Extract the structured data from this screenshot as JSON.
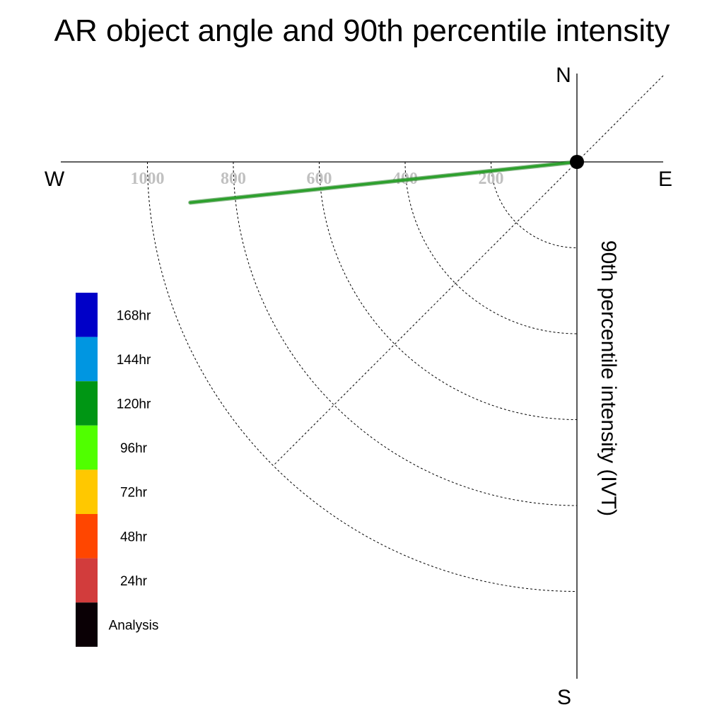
{
  "chart_data": {
    "type": "polar-quadrant",
    "title": "AR object angle and 90th percentile intensity",
    "ylabel": "90th percentile intensity (IVT)",
    "compass": {
      "north": "N",
      "south": "S",
      "east": "E",
      "west": "W"
    },
    "radial_ticks": [
      200,
      400,
      600,
      800,
      1000
    ],
    "radial_tick_labels": [
      "200",
      "400",
      "600",
      "800",
      "1000"
    ],
    "rmax": 1200,
    "grid": true,
    "legend_position": "left",
    "legend": [
      {
        "label": "168hr",
        "color": "#0000c8"
      },
      {
        "label": "144hr",
        "color": "#0096e1"
      },
      {
        "label": "120hr",
        "color": "#009614"
      },
      {
        "label": "96hr",
        "color": "#50ff00"
      },
      {
        "label": "72hr",
        "color": "#ffc800"
      },
      {
        "label": "48hr",
        "color": "#ff4600"
      },
      {
        "label": "24hr",
        "color": "#d23c3c"
      },
      {
        "label": "Analysis",
        "color": "#0a0005"
      }
    ],
    "series": [
      {
        "name": "120hr",
        "color": "#2ca02c",
        "points": [
          {
            "intensity": 0,
            "angle_deg": 0
          },
          {
            "intensity": 905,
            "angle_deg": 6
          }
        ]
      }
    ],
    "analysis_marker": {
      "intensity": 0,
      "angle_deg": 0,
      "color": "#000000"
    }
  }
}
